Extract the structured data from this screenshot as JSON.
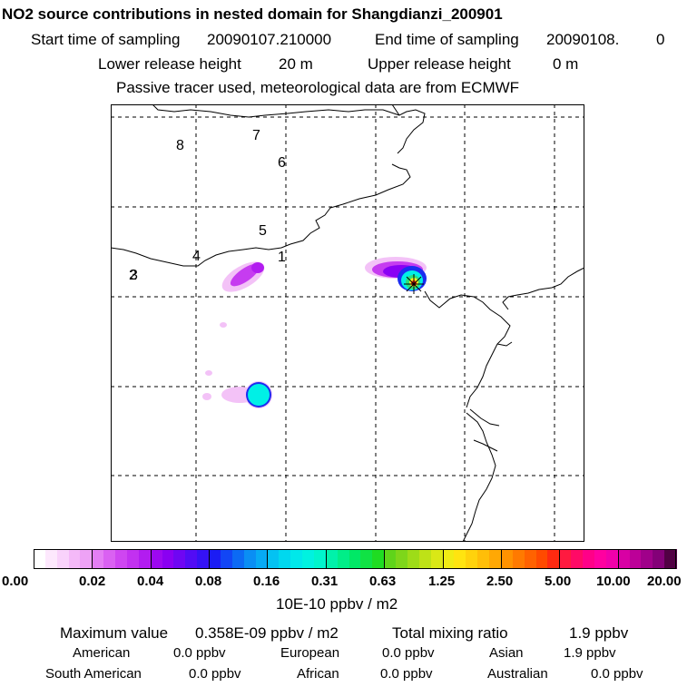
{
  "header": {
    "title": "NO2 source contributions in nested domain for Shangdianzi_200901",
    "start_label": "Start time of sampling",
    "start_value": "20090107.210000",
    "end_label": "End time of sampling",
    "end_value": "20090108.",
    "end_suffix": "0",
    "lower_label": "Lower release height",
    "lower_value": "20 m",
    "upper_label": "Upper release height",
    "upper_value": "0 m",
    "note": "Passive tracer used, meteorological data are from ECMWF"
  },
  "map": {
    "region_labels": [
      "1",
      "2",
      "3",
      "4",
      "5",
      "6",
      "7",
      "8"
    ],
    "plume_colors": {
      "light": "#f3c2f7",
      "violet": "#c63cf0",
      "purple": "#8a00f4",
      "blue": "#1b2cf0",
      "cyan": "#00f0e6",
      "green": "#2ce079",
      "yellow": "#f5f01e",
      "orange": "#ffa500",
      "red": "#ff2a10"
    },
    "station_marker": "station-star-icon"
  },
  "colorbar": {
    "unit": "10E-10 ppbv / m2",
    "tick_labels": [
      "0.00",
      "0.02",
      "0.04",
      "0.08",
      "0.16",
      "0.31",
      "0.63",
      "1.25",
      "2.50",
      "5.00",
      "10.00",
      "20.00"
    ],
    "colors": [
      [
        "#ffffff",
        "#fde8fd",
        "#f9d2fb",
        "#f4b9f8",
        "#eea2f6"
      ],
      [
        "#e47ef4",
        "#da61f2",
        "#cf46f1",
        "#c231f0",
        "#b21cf0"
      ],
      [
        "#9d08f0",
        "#8a00f2",
        "#6f06f3",
        "#520cf5",
        "#3512f5"
      ],
      [
        "#1b1cf4",
        "#1246f5",
        "#0c6af4",
        "#0a8ef4",
        "#07aaf4"
      ],
      [
        "#04c2f2",
        "#00d8ef",
        "#00e8ea",
        "#00f2e0",
        "#00f5cc"
      ],
      [
        "#00f2aa",
        "#00ee88",
        "#00e866",
        "#10e244",
        "#1fdc22"
      ],
      [
        "#5fd41a",
        "#7ed61a",
        "#9edc18",
        "#bee217",
        "#dae816"
      ],
      [
        "#f0ec14",
        "#ffe410",
        "#ffd20c",
        "#ffbe08",
        "#ffa804"
      ],
      [
        "#ff9200",
        "#ff7a00",
        "#ff6200",
        "#ff4a00",
        "#ff2a10"
      ],
      [
        "#ff1a40",
        "#ff0a66",
        "#ff0088",
        "#ff00a0",
        "#f000aa"
      ],
      [
        "#d800a4",
        "#bc0098",
        "#a0008a",
        "#840078",
        "#520044"
      ]
    ]
  },
  "summary": {
    "max_label": "Maximum value",
    "max_value": "0.358E-09 ppbv / m2",
    "total_label": "Total mixing ratio",
    "total_value": "1.9 ppbv",
    "regions": [
      {
        "name": "American",
        "value": "0.0 ppbv"
      },
      {
        "name": "European",
        "value": "0.0 ppbv"
      },
      {
        "name": "Asian",
        "value": "1.9 ppbv"
      },
      {
        "name": "South American",
        "value": "0.0 ppbv"
      },
      {
        "name": "African",
        "value": "0.0 ppbv"
      },
      {
        "name": "Australian",
        "value": "0.0 ppbv"
      }
    ]
  }
}
